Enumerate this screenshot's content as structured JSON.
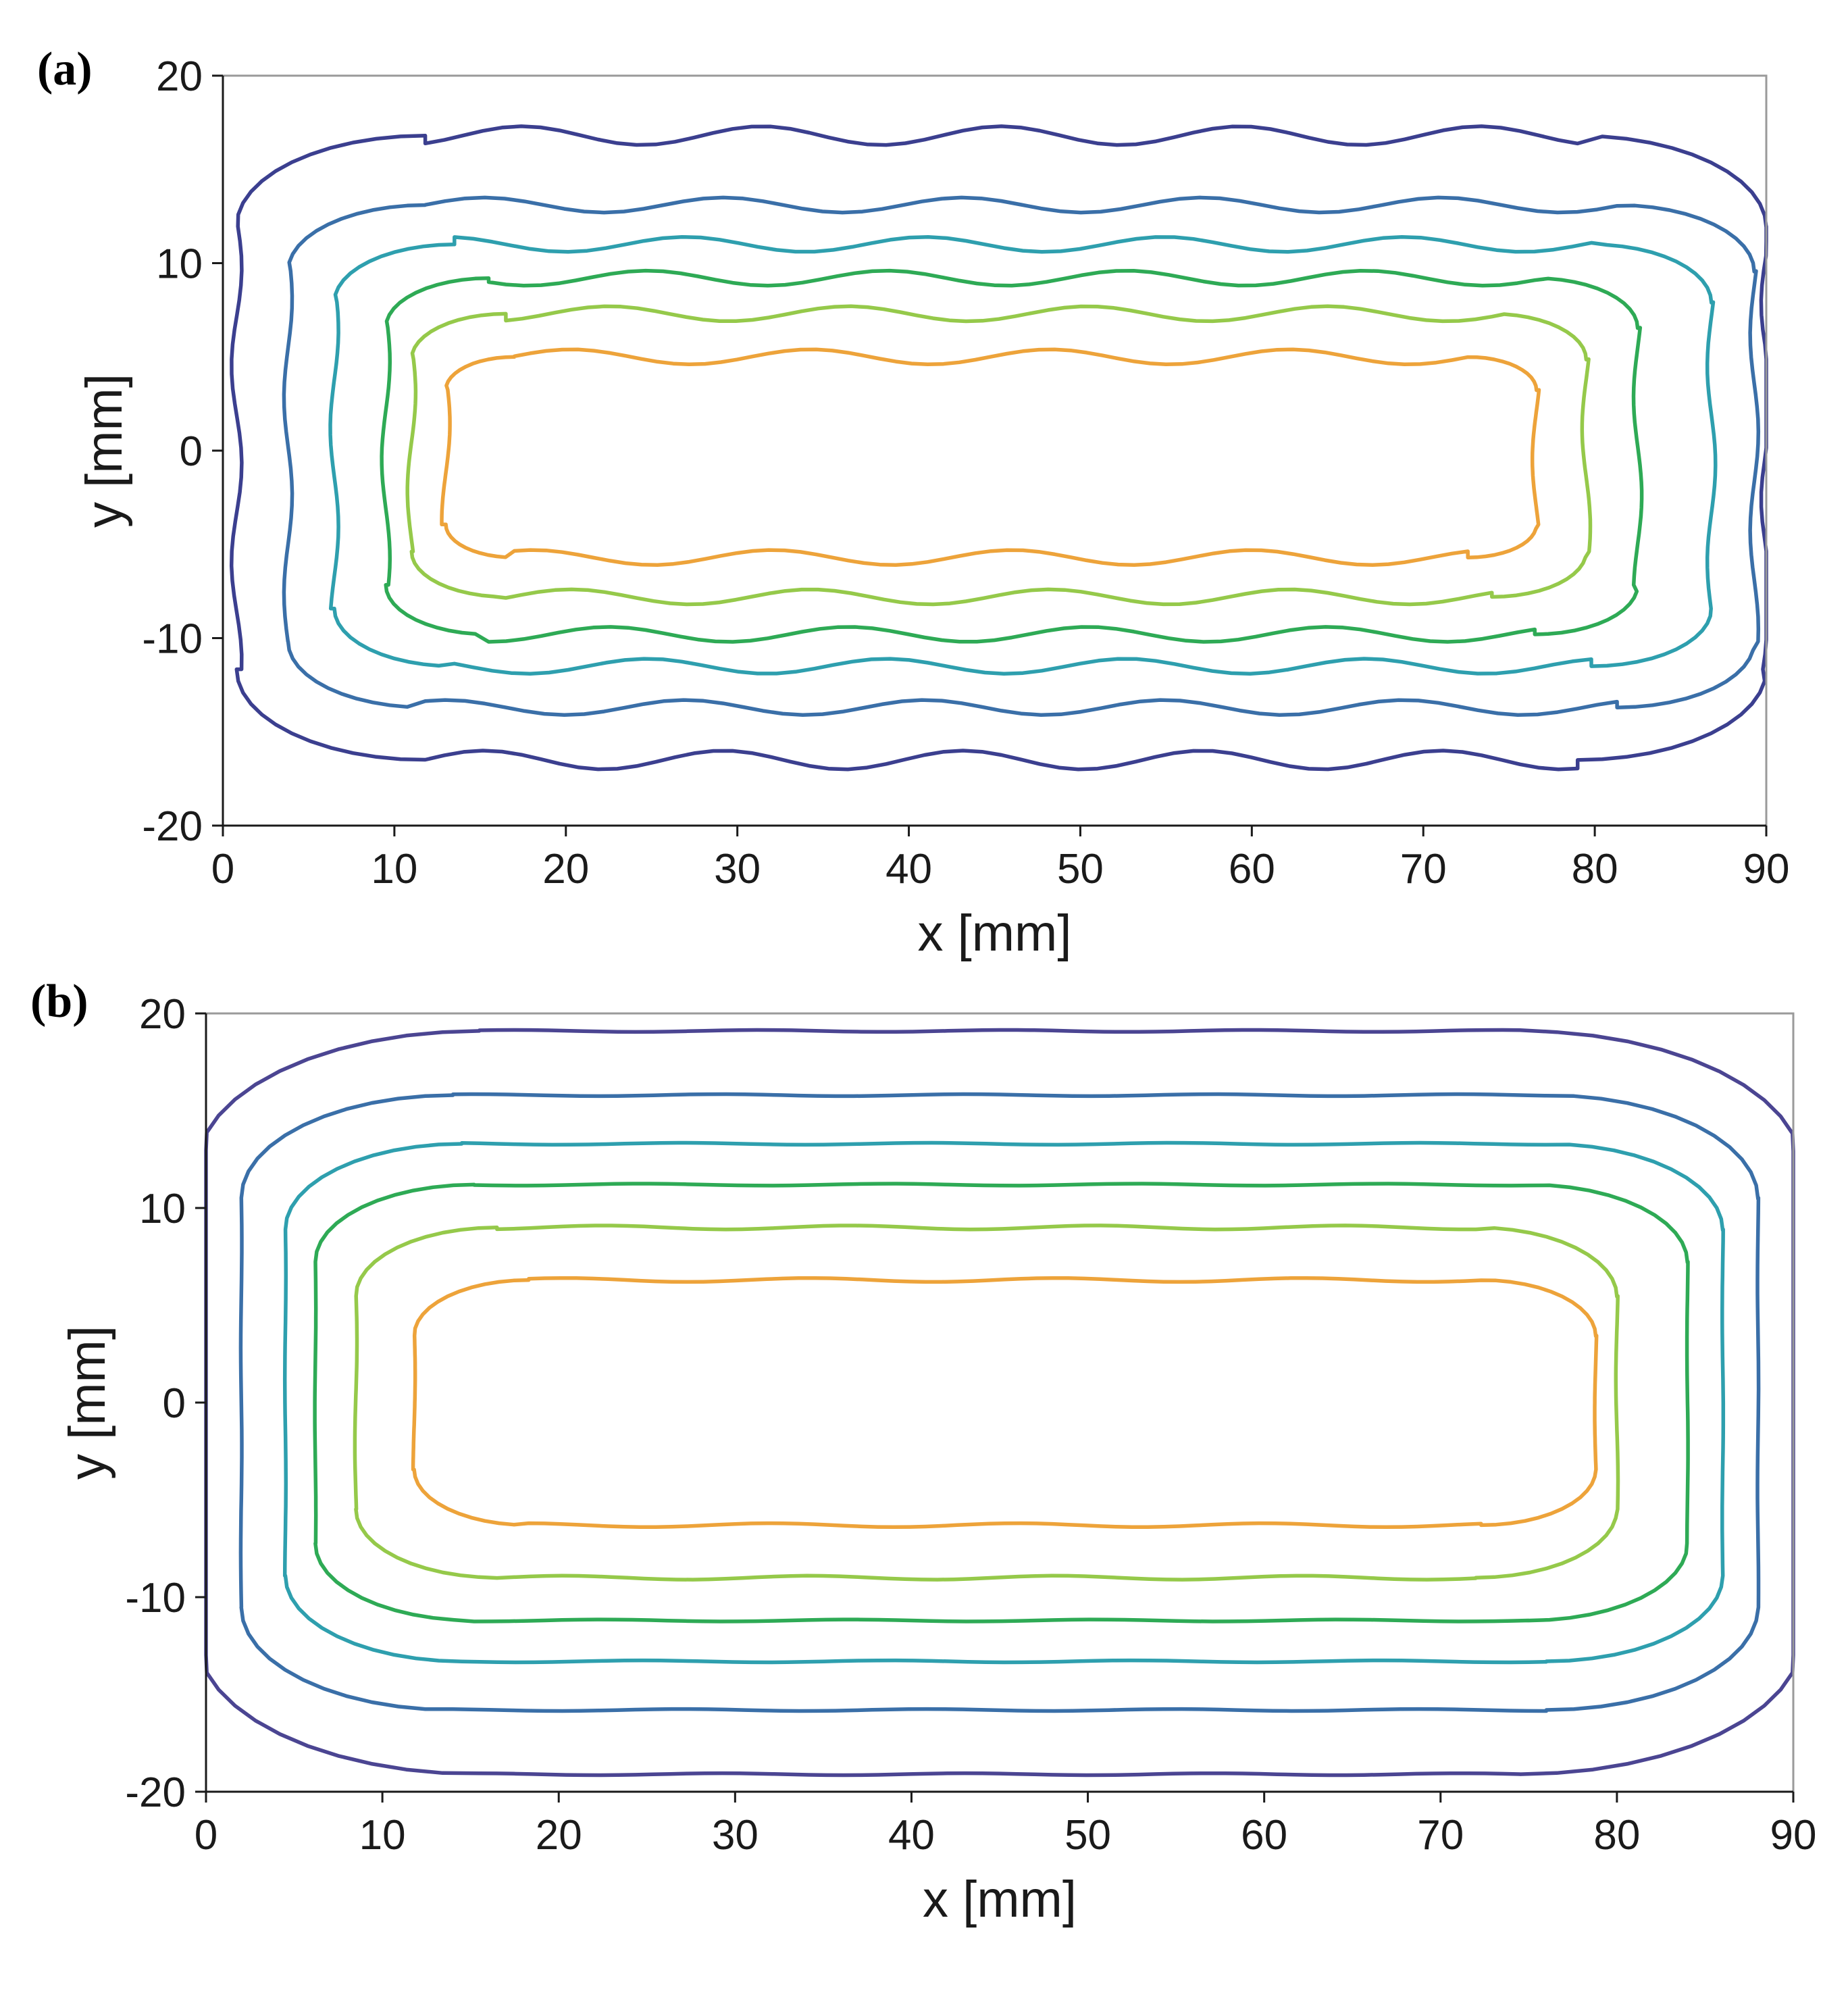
{
  "chart_data": [
    {
      "type": "contour",
      "panel_label": "(a)",
      "xlabel": "x [mm]",
      "ylabel": "y [mm]",
      "xlim": [
        0,
        90
      ],
      "ylim": [
        -20,
        20
      ],
      "x_ticks": [
        "0",
        "10",
        "20",
        "30",
        "40",
        "50",
        "60",
        "70",
        "80",
        "90"
      ],
      "y_ticks": [
        "20",
        "10",
        "0",
        "-10",
        "-20"
      ],
      "grid": false,
      "contours": [
        {
          "color": "#3b3f8f",
          "x_range": [
            0.8,
            90
          ],
          "y_range": [
            -16.5,
            16.8
          ],
          "corner": 11,
          "wobble": 0.5
        },
        {
          "color": "#3a6fa8",
          "x_range": [
            3.8,
            89.3
          ],
          "y_range": [
            -13.7,
            13.1
          ],
          "corner": 8,
          "wobble": 0.4
        },
        {
          "color": "#2e9fae",
          "x_range": [
            6.5,
            86.8
          ],
          "y_range": [
            -11.5,
            11.0
          ],
          "corner": 7,
          "wobble": 0.4
        },
        {
          "color": "#2eaa55",
          "x_range": [
            9.5,
            82.5
          ],
          "y_range": [
            -9.8,
            9.2
          ],
          "corner": 6,
          "wobble": 0.4
        },
        {
          "color": "#95c94a",
          "x_range": [
            11.0,
            79.5
          ],
          "y_range": [
            -7.8,
            7.3
          ],
          "corner": 5.5,
          "wobble": 0.4
        },
        {
          "color": "#eda33a",
          "x_range": [
            13.0,
            76.6
          ],
          "y_range": [
            -5.7,
            5.0
          ],
          "corner": 4,
          "wobble": 0.4
        }
      ]
    },
    {
      "type": "contour",
      "panel_label": "(b)",
      "xlabel": "x [mm]",
      "ylabel": "y [mm]",
      "xlim": [
        0,
        90
      ],
      "ylim": [
        -20,
        20
      ],
      "x_ticks": [
        "0",
        "10",
        "20",
        "30",
        "40",
        "50",
        "60",
        "70",
        "80",
        "90"
      ],
      "y_ticks": [
        "20",
        "10",
        "0",
        "-10",
        "-20"
      ],
      "grid": false,
      "contours": [
        {
          "color": "#4b4592",
          "x_range": [
            -0.5,
            90.5
          ],
          "y_range": [
            -19.1,
            19.1
          ],
          "corner": 16,
          "wobble": 0.05
        },
        {
          "color": "#3a6fa8",
          "x_range": [
            2.0,
            88.0
          ],
          "y_range": [
            -15.8,
            15.8
          ],
          "corner": 12,
          "wobble": 0.05
        },
        {
          "color": "#2e9fae",
          "x_range": [
            4.5,
            86.0
          ],
          "y_range": [
            -13.3,
            13.3
          ],
          "corner": 10,
          "wobble": 0.05
        },
        {
          "color": "#2eaa55",
          "x_range": [
            6.2,
            84.0
          ],
          "y_range": [
            -11.2,
            11.2
          ],
          "corner": 9,
          "wobble": 0.05
        },
        {
          "color": "#95c94a",
          "x_range": [
            8.5,
            80.0
          ],
          "y_range": [
            -9.0,
            9.0
          ],
          "corner": 8,
          "wobble": 0.1
        },
        {
          "color": "#eda33a",
          "x_range": [
            11.8,
            78.8
          ],
          "y_range": [
            -6.3,
            6.3
          ],
          "corner": 6.5,
          "wobble": 0.1
        }
      ]
    }
  ]
}
